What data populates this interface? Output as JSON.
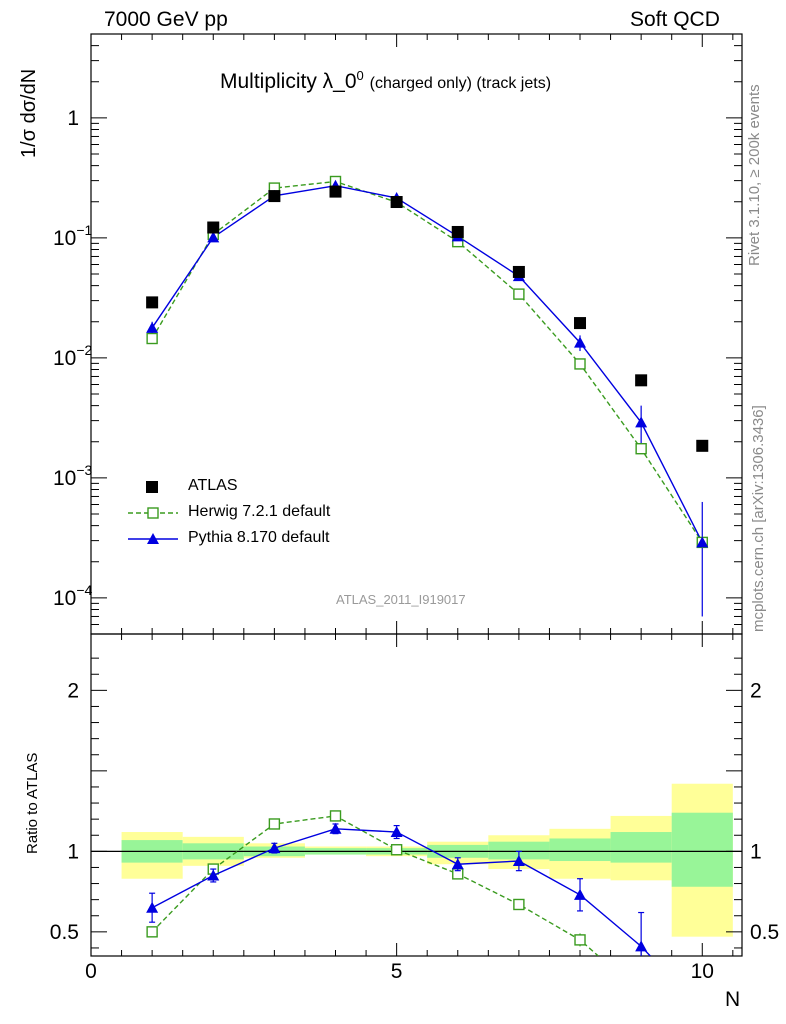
{
  "header": {
    "left": "7000 GeV pp",
    "right": "Soft QCD"
  },
  "side_text": {
    "rivet": "Rivet 3.1.10, ≥ 200k events",
    "mcplots": "mcplots.cern.ch [arXiv:1306.3436]"
  },
  "title": {
    "main": "Multiplicity λ_0",
    "sup": "0",
    "suffix": "(charged only) (track jets)"
  },
  "watermark": "ATLAS_2011_I919017",
  "legend": {
    "atlas": "ATLAS",
    "herwig": "Herwig 7.2.1 default",
    "pythia": "Pythia 8.170 default"
  },
  "colors": {
    "atlas": "#000000",
    "herwig": "#3a9b1f",
    "pythia": "#0000e0",
    "band_inner": "#98f598",
    "band_outer": "#ffff98"
  },
  "chart_data": [
    {
      "type": "scatter",
      "panel": "main",
      "ylabel": "1/σ dσ/dN",
      "yscale": "log",
      "ylim": [
        5e-05,
        5
      ],
      "xlim": [
        0,
        10.65
      ],
      "ytick_labels": [
        "10^-4",
        "10^-3",
        "10^-2",
        "10^-1",
        "1"
      ],
      "series": [
        {
          "name": "ATLAS",
          "x": [
            1,
            2,
            3,
            4,
            5,
            6,
            7,
            8,
            9,
            10
          ],
          "y": [
            0.029,
            0.122,
            0.223,
            0.243,
            0.199,
            0.112,
            0.052,
            0.0195,
            0.0065,
            0.00185
          ]
        },
        {
          "name": "Herwig 7.2.1 default",
          "x": [
            1,
            2,
            3,
            4,
            5,
            6,
            7,
            8,
            9,
            10
          ],
          "y": [
            0.0145,
            0.107,
            0.26,
            0.295,
            0.198,
            0.093,
            0.034,
            0.0089,
            0.00175,
            0.00029
          ]
        },
        {
          "name": "Pythia 8.170 default",
          "x": [
            1,
            2,
            3,
            4,
            5,
            6,
            7,
            8,
            9,
            10
          ],
          "y": [
            0.0178,
            0.101,
            0.224,
            0.272,
            0.215,
            0.103,
            0.048,
            0.0134,
            0.0029,
            0.00029
          ],
          "err_low": [
            0.0022,
            0.005,
            0.007,
            0.007,
            0.008,
            0.005,
            0.004,
            0.002,
            0.0011,
            0.00022
          ],
          "err_high": [
            0.0022,
            0.005,
            0.007,
            0.007,
            0.008,
            0.005,
            0.004,
            0.002,
            0.0011,
            0.00034
          ]
        }
      ]
    },
    {
      "type": "line",
      "panel": "ratio",
      "ylabel": "Ratio to ATLAS",
      "xlabel": "N",
      "ylim": [
        0.35,
        2.35
      ],
      "xlim": [
        0,
        10.65
      ],
      "yticks": [
        0.5,
        1,
        2
      ],
      "xticks": [
        0,
        5,
        10
      ],
      "bands": {
        "x_edges": [
          0.5,
          1.5,
          2.5,
          3.5,
          4.5,
          5.5,
          6.5,
          7.5,
          8.5,
          9.5,
          10.5
        ],
        "inner_low": [
          0.93,
          0.95,
          0.97,
          0.98,
          0.98,
          0.96,
          0.95,
          0.94,
          0.93,
          0.78
        ],
        "inner_high": [
          1.07,
          1.05,
          1.03,
          1.02,
          1.02,
          1.04,
          1.06,
          1.08,
          1.12,
          1.24
        ],
        "outer_low": [
          0.83,
          0.91,
          0.96,
          0.98,
          0.97,
          0.92,
          0.89,
          0.83,
          0.82,
          0.47
        ],
        "outer_high": [
          1.12,
          1.09,
          1.05,
          1.03,
          1.03,
          1.06,
          1.1,
          1.14,
          1.22,
          1.42
        ]
      },
      "series": [
        {
          "name": "Herwig 7.2.1 default",
          "x": [
            1,
            2,
            3,
            4,
            5,
            6,
            7,
            8,
            8.3
          ],
          "y": [
            0.5,
            0.89,
            1.17,
            1.22,
            1.01,
            0.86,
            0.67,
            0.45,
            0.35
          ]
        },
        {
          "name": "Pythia 8.170 default",
          "x": [
            1,
            2,
            3,
            4,
            5,
            6,
            7,
            8,
            9,
            9.15
          ],
          "y": [
            0.65,
            0.85,
            1.02,
            1.14,
            1.12,
            0.92,
            0.94,
            0.73,
            0.41,
            0.35
          ],
          "err": [
            0.09,
            0.04,
            0.03,
            0.03,
            0.04,
            0.04,
            0.06,
            0.1,
            0.21,
            0
          ]
        }
      ]
    }
  ]
}
